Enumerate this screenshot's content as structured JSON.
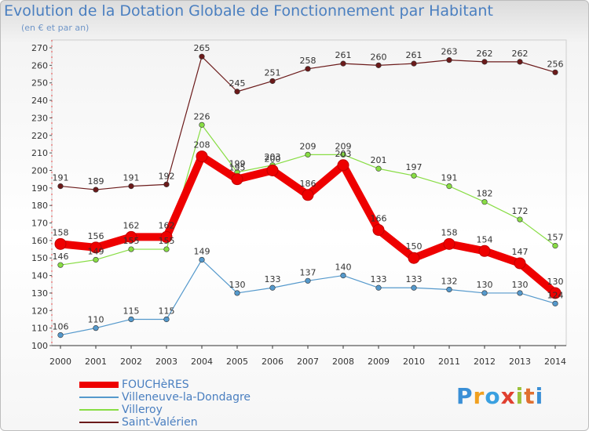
{
  "title": "Evolution de la Dotation Globale de Fonctionnement par Habitant",
  "subtitle": "(en € et par an)",
  "logo_text": "Proxiti",
  "chart_data": {
    "type": "line",
    "x": [
      "2000",
      "2001",
      "2002",
      "2003",
      "2004",
      "2005",
      "2006",
      "2007",
      "2008",
      "2009",
      "2010",
      "2011",
      "2012",
      "2013",
      "2014"
    ],
    "ylim": [
      100,
      270
    ],
    "yticks": [
      100,
      110,
      120,
      130,
      140,
      150,
      160,
      170,
      180,
      190,
      200,
      210,
      220,
      230,
      240,
      250,
      260,
      270
    ],
    "grid": false,
    "legend_placement": "bottom-left",
    "series": [
      {
        "name": "FOUCHèRES",
        "color": "#ee0000",
        "values": [
          158,
          156,
          162,
          162,
          208,
          195,
          200,
          186,
          203,
          166,
          150,
          158,
          154,
          147,
          130
        ],
        "labels": [
          "158",
          "156",
          "162",
          "162",
          "208",
          "195",
          "200",
          "186",
          "203",
          "166",
          "150",
          "158",
          "154",
          "147",
          "130"
        ]
      },
      {
        "name": "Villeneuve-la-Dondagre",
        "color": "#5599cc",
        "values": [
          106,
          110,
          115,
          115,
          149,
          130,
          133,
          137,
          140,
          133,
          133,
          132,
          130,
          130,
          124
        ],
        "labels": [
          "106",
          "110",
          "115",
          "115",
          "149",
          "130",
          "133",
          "137",
          "140",
          "133",
          "133",
          "132",
          "130",
          "130",
          "124"
        ]
      },
      {
        "name": "Villeroy",
        "color": "#88dd44",
        "values": [
          146,
          149,
          155,
          155,
          226,
          199,
          203,
          209,
          209,
          201,
          197,
          191,
          182,
          172,
          157
        ],
        "labels": [
          "146",
          "149",
          "155",
          "155",
          "226",
          "199",
          "203",
          "209",
          "209",
          "201",
          "197",
          "191",
          "182",
          "172",
          "157"
        ]
      },
      {
        "name": "Saint-Valérien",
        "color": "#6b1a1a",
        "values": [
          191,
          189,
          191,
          192,
          265,
          245,
          251,
          258,
          261,
          260,
          261,
          263,
          262,
          262,
          256
        ],
        "labels": [
          "191",
          "189",
          "191",
          "192",
          "265",
          "245",
          "251",
          "258",
          "261",
          "260",
          "261",
          "263",
          "262",
          "262",
          "256"
        ]
      }
    ]
  }
}
